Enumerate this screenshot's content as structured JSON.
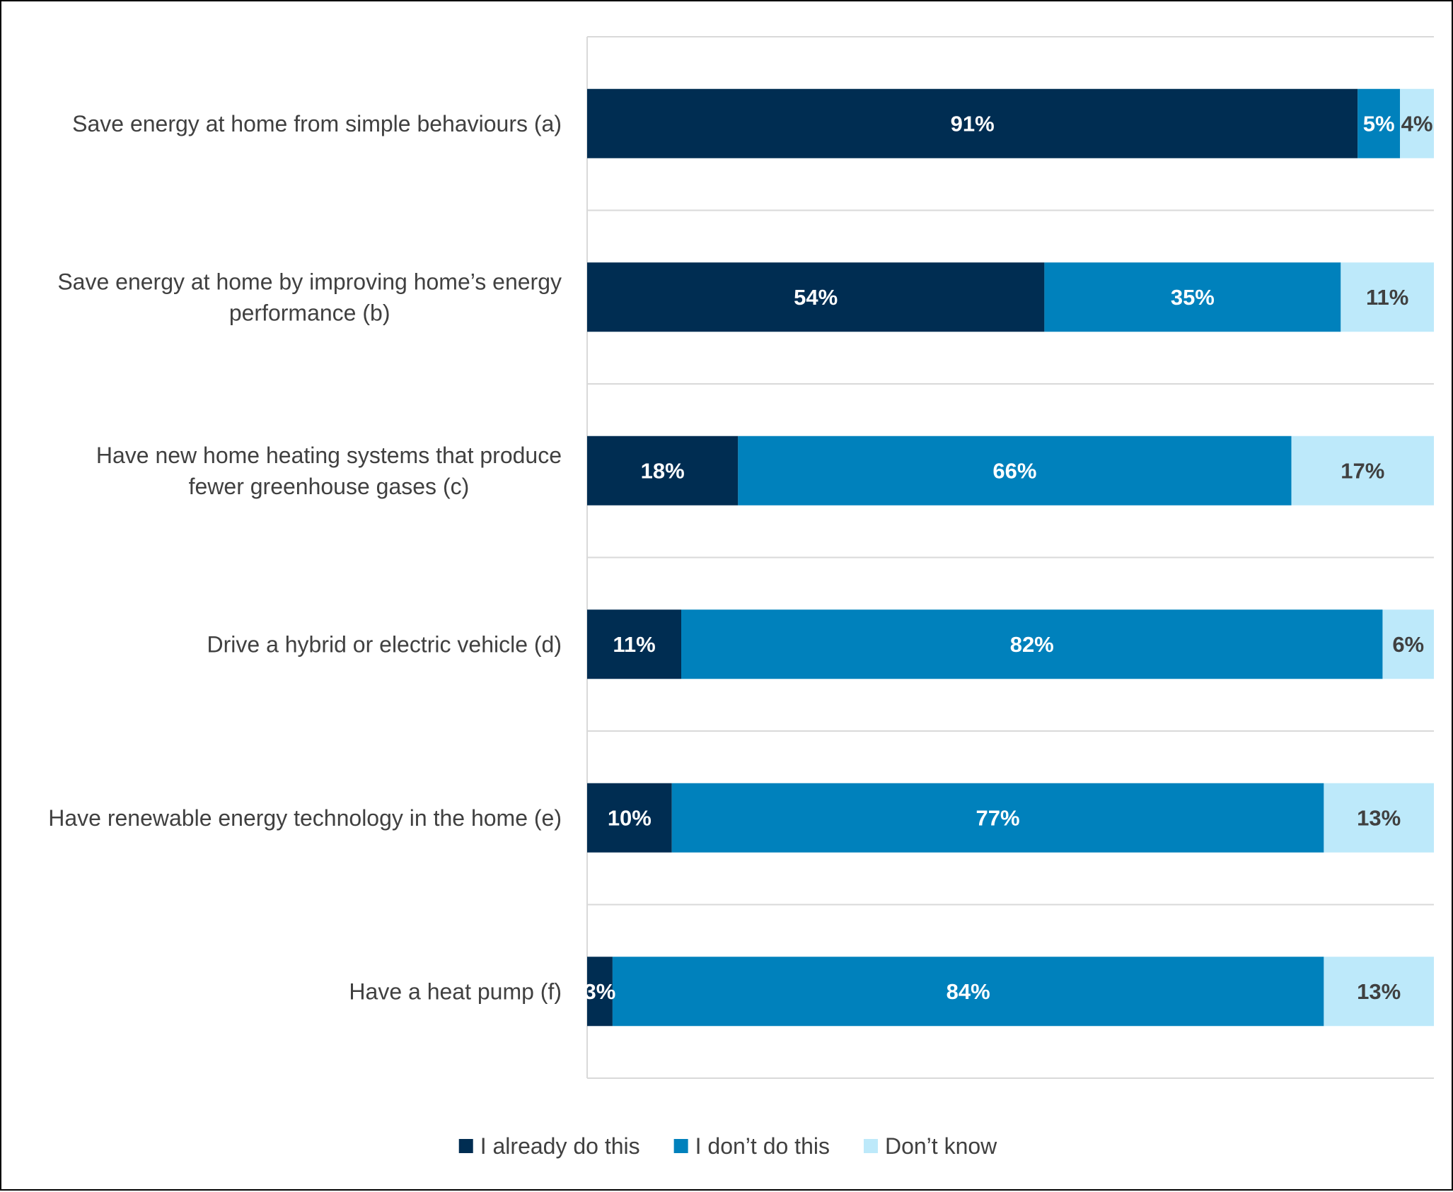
{
  "chart_data": {
    "type": "bar",
    "orientation": "horizontal",
    "stacked": true,
    "percent": true,
    "title": "",
    "xlabel": "",
    "ylabel": "",
    "xlim": [
      0,
      100
    ],
    "grid": "horizontal separators between categories",
    "legend_position": "bottom",
    "categories": [
      "Save energy at home from simple behaviours (a)",
      "Save energy at home by improving home’s energy performance (b)",
      "Have new home heating systems that produce fewer greenhouse gases (c)",
      "Drive a hybrid or electric vehicle (d)",
      "Have renewable energy technology in the home (e)",
      "Have a heat pump (f)"
    ],
    "category_lines": [
      [
        "Save energy at home from simple behaviours (a)"
      ],
      [
        "Save energy at home by improving home’s energy",
        "performance (b)"
      ],
      [
        "Have new home heating systems that produce",
        "fewer greenhouse gases (c)"
      ],
      [
        "Drive a hybrid or electric vehicle (d)"
      ],
      [
        "Have renewable energy technology in the home (e)"
      ],
      [
        "Have a heat pump (f)"
      ]
    ],
    "series": [
      {
        "name": "I already do this",
        "color": "#002D52",
        "label_color": "#FFFFFF",
        "values": [
          91,
          54,
          18,
          11,
          10,
          3
        ]
      },
      {
        "name": "I don’t do this",
        "color": "#0081BC",
        "label_color": "#FFFFFF",
        "values": [
          5,
          35,
          66,
          82,
          77,
          84
        ]
      },
      {
        "name": "Don’t know",
        "color": "#BDE9FA",
        "label_color": "#404040",
        "values": [
          4,
          11,
          17,
          6,
          13,
          13
        ]
      }
    ]
  }
}
